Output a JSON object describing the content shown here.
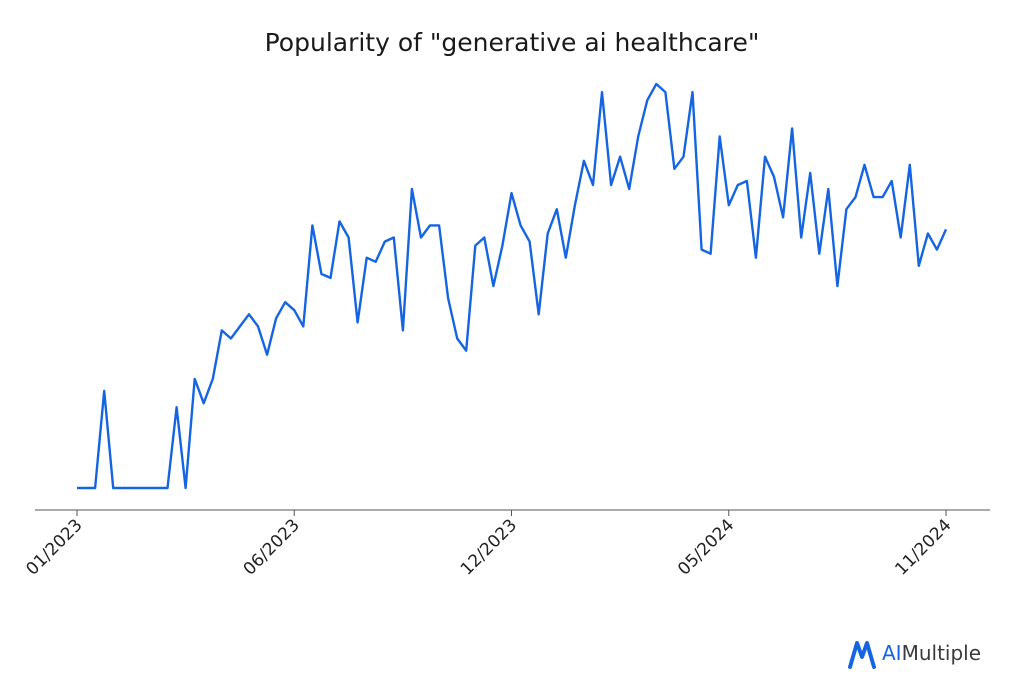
{
  "chart_data": {
    "type": "line",
    "title": "Popularity of \"generative ai healthcare\"",
    "xlabel": "",
    "ylabel": "",
    "x_tick_labels": [
      "01/2023",
      "06/2023",
      "12/2023",
      "05/2024",
      "11/2024"
    ],
    "ylim": [
      0,
      100
    ],
    "grid": false,
    "legend": "none",
    "line_color": "#1565e3",
    "series": [
      {
        "values": [
          0,
          0,
          0,
          24,
          0,
          0,
          0,
          0,
          0,
          0,
          0,
          20,
          0,
          27,
          21,
          27,
          39,
          37,
          40,
          43,
          40,
          33,
          42,
          46,
          44,
          40,
          65,
          53,
          52,
          66,
          62,
          41,
          57,
          56,
          61,
          62,
          39,
          74,
          62,
          65,
          65,
          47,
          37,
          34,
          60,
          62,
          50,
          60,
          73,
          65,
          61,
          43,
          63,
          69,
          57,
          70,
          81,
          75,
          98,
          75,
          82,
          74,
          87,
          96,
          100,
          98,
          79,
          82,
          98,
          59,
          58,
          87,
          70,
          75,
          76,
          57,
          82,
          77,
          67,
          89,
          62,
          78,
          58,
          74,
          50,
          69,
          72,
          80,
          72,
          72,
          76,
          62,
          80,
          55,
          63,
          59,
          64
        ]
      }
    ]
  },
  "brand": {
    "icon": "aimultiple-logo-icon",
    "accent_color": "#1565e3",
    "name_part1": "AI",
    "name_part2": "Multiple"
  }
}
